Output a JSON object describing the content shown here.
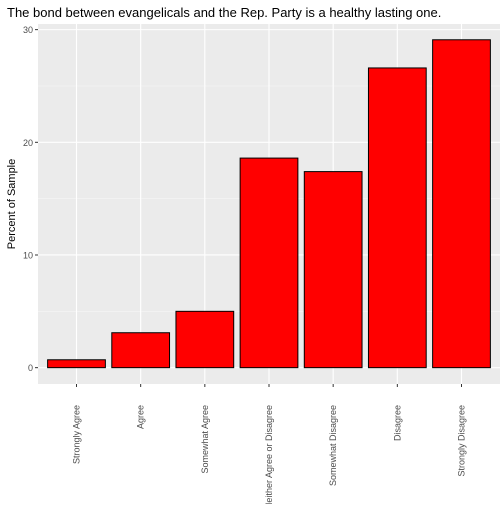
{
  "chart_data": {
    "type": "bar",
    "title": "The bond between evangelicals and the Rep. Party is a healthy lasting one.",
    "xlabel": "",
    "ylabel": "Percent of Sample",
    "categories": [
      "Strongly Agree",
      "Agree",
      "Somewhat Agree",
      "Neither Agree or Disagree",
      "Somewhat Disagree",
      "Disagree",
      "Strongly Disagree"
    ],
    "values": [
      0.7,
      3.1,
      5.0,
      18.6,
      17.4,
      26.6,
      29.1
    ],
    "ylim": [
      -1.45,
      30.5
    ],
    "yticks": [
      0,
      10,
      20,
      30
    ],
    "grid": true,
    "colors": {
      "bar_fill": "#ff0000",
      "bar_stroke": "#000000",
      "panel_bg": "#ebebeb",
      "grid_major": "#ffffff",
      "text": "#4d4d4d",
      "title": "#000000"
    }
  }
}
